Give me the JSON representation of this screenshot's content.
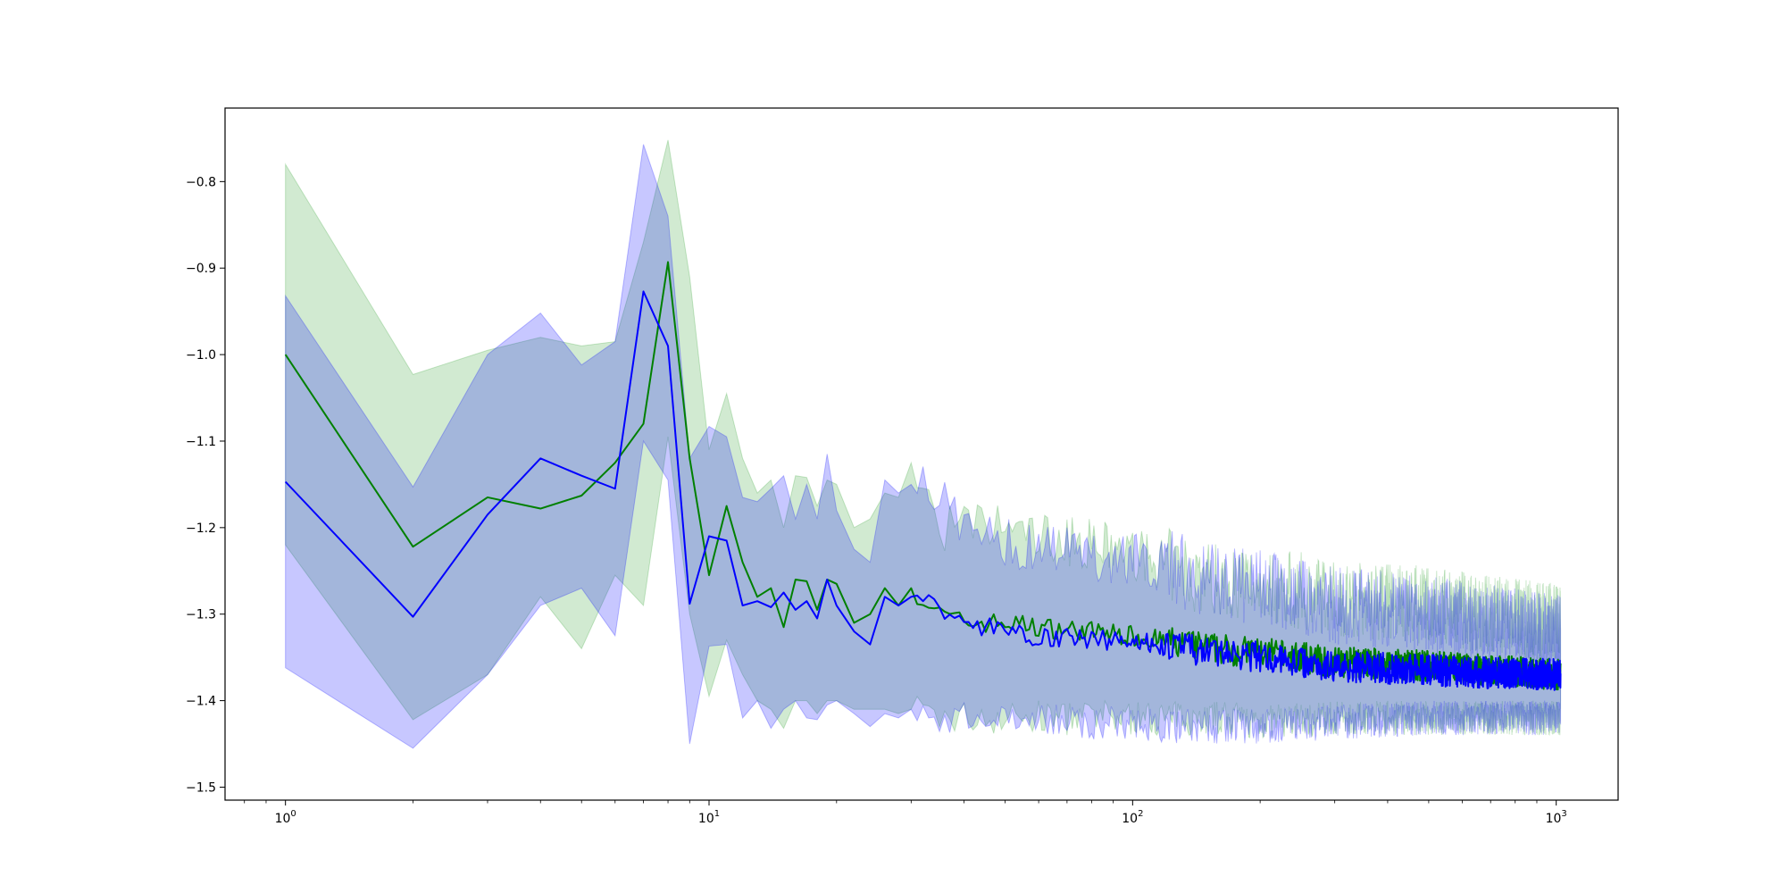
{
  "chart_data": {
    "type": "line",
    "title": "",
    "xlabel": "",
    "ylabel": "",
    "xscale": "log",
    "xlim": [
      0.72,
      1400
    ],
    "ylim": [
      -1.515,
      -0.715
    ],
    "grid": false,
    "legend": "none",
    "x_ticks": [
      {
        "base": "10",
        "exp": "0",
        "value": 1
      },
      {
        "base": "10",
        "exp": "1",
        "value": 10
      },
      {
        "base": "10",
        "exp": "2",
        "value": 100
      },
      {
        "base": "10",
        "exp": "3",
        "value": 1000
      }
    ],
    "y_ticks": [
      {
        "label": "−0.8",
        "value": -0.8
      },
      {
        "label": "−0.9",
        "value": -0.9
      },
      {
        "label": "−1.0",
        "value": -1.0
      },
      {
        "label": "−1.1",
        "value": -1.1
      },
      {
        "label": "−1.2",
        "value": -1.2
      },
      {
        "label": "−1.3",
        "value": -1.3
      },
      {
        "label": "−1.4",
        "value": -1.4
      },
      {
        "label": "−1.5",
        "value": -1.5
      }
    ],
    "series": [
      {
        "color": "#008000",
        "band_color": "#2ca02c",
        "x": [
          1,
          2,
          3,
          4,
          5,
          6,
          7,
          8,
          9,
          10,
          11,
          12,
          13,
          14,
          15,
          16,
          17,
          18,
          19,
          20,
          22,
          24,
          26,
          28,
          30,
          35,
          40,
          50,
          60,
          80,
          100,
          130,
          160,
          200,
          300,
          500,
          700,
          1024
        ],
        "y": [
          -1.0,
          -1.222,
          -1.165,
          -1.178,
          -1.163,
          -1.125,
          -1.08,
          -0.893,
          -1.12,
          -1.255,
          -1.175,
          -1.24,
          -1.28,
          -1.27,
          -1.315,
          -1.26,
          -1.262,
          -1.295,
          -1.26,
          -1.265,
          -1.31,
          -1.3,
          -1.27,
          -1.29,
          -1.27,
          -1.3,
          -1.31,
          -1.31,
          -1.315,
          -1.32,
          -1.325,
          -1.335,
          -1.34,
          -1.345,
          -1.355,
          -1.36,
          -1.365,
          -1.37
        ],
        "lower": [
          -1.22,
          -1.422,
          -1.37,
          -1.28,
          -1.34,
          -1.255,
          -1.29,
          -1.095,
          -1.3,
          -1.395,
          -1.33,
          -1.37,
          -1.4,
          -1.41,
          -1.432,
          -1.4,
          -1.4,
          -1.415,
          -1.4,
          -1.4,
          -1.41,
          -1.41,
          -1.41,
          -1.415,
          -1.41,
          -1.42,
          -1.42,
          -1.42,
          -1.42,
          -1.42,
          -1.42,
          -1.42,
          -1.42,
          -1.425,
          -1.42,
          -1.42,
          -1.42,
          -1.42
        ],
        "upper": [
          -0.78,
          -1.023,
          -0.995,
          -0.98,
          -0.99,
          -0.985,
          -0.87,
          -0.752,
          -0.91,
          -1.11,
          -1.045,
          -1.12,
          -1.16,
          -1.145,
          -1.2,
          -1.14,
          -1.142,
          -1.175,
          -1.145,
          -1.15,
          -1.2,
          -1.19,
          -1.16,
          -1.165,
          -1.125,
          -1.2,
          -1.2,
          -1.2,
          -1.21,
          -1.22,
          -1.23,
          -1.25,
          -1.26,
          -1.265,
          -1.28,
          -1.29,
          -1.3,
          -1.31
        ]
      },
      {
        "color": "#0000ff",
        "band_color": "#0000ff",
        "x": [
          1,
          2,
          3,
          4,
          5,
          6,
          7,
          8,
          9,
          10,
          11,
          12,
          13,
          14,
          15,
          16,
          17,
          18,
          19,
          20,
          22,
          24,
          26,
          28,
          30,
          35,
          40,
          50,
          60,
          80,
          100,
          130,
          160,
          200,
          300,
          500,
          700,
          1024
        ],
        "y": [
          -1.147,
          -1.303,
          -1.185,
          -1.12,
          -1.14,
          -1.155,
          -0.927,
          -0.99,
          -1.288,
          -1.21,
          -1.215,
          -1.29,
          -1.285,
          -1.292,
          -1.275,
          -1.295,
          -1.285,
          -1.305,
          -1.26,
          -1.29,
          -1.32,
          -1.335,
          -1.28,
          -1.29,
          -1.28,
          -1.29,
          -1.31,
          -1.32,
          -1.325,
          -1.33,
          -1.33,
          -1.34,
          -1.345,
          -1.35,
          -1.36,
          -1.365,
          -1.368,
          -1.37
        ],
        "lower": [
          -1.362,
          -1.455,
          -1.37,
          -1.29,
          -1.27,
          -1.325,
          -1.1,
          -1.145,
          -1.45,
          -1.337,
          -1.335,
          -1.42,
          -1.4,
          -1.432,
          -1.41,
          -1.4,
          -1.42,
          -1.422,
          -1.405,
          -1.4,
          -1.415,
          -1.43,
          -1.415,
          -1.42,
          -1.41,
          -1.42,
          -1.42,
          -1.42,
          -1.42,
          -1.425,
          -1.425,
          -1.43,
          -1.43,
          -1.43,
          -1.425,
          -1.42,
          -1.42,
          -1.42
        ],
        "upper": [
          -0.932,
          -1.153,
          -1.0,
          -0.952,
          -1.012,
          -0.985,
          -0.757,
          -0.84,
          -1.12,
          -1.083,
          -1.095,
          -1.165,
          -1.17,
          -1.155,
          -1.14,
          -1.19,
          -1.15,
          -1.19,
          -1.115,
          -1.18,
          -1.225,
          -1.24,
          -1.145,
          -1.16,
          -1.15,
          -1.16,
          -1.2,
          -1.22,
          -1.22,
          -1.235,
          -1.235,
          -1.25,
          -1.26,
          -1.27,
          -1.29,
          -1.3,
          -1.31,
          -1.32
        ]
      }
    ]
  }
}
